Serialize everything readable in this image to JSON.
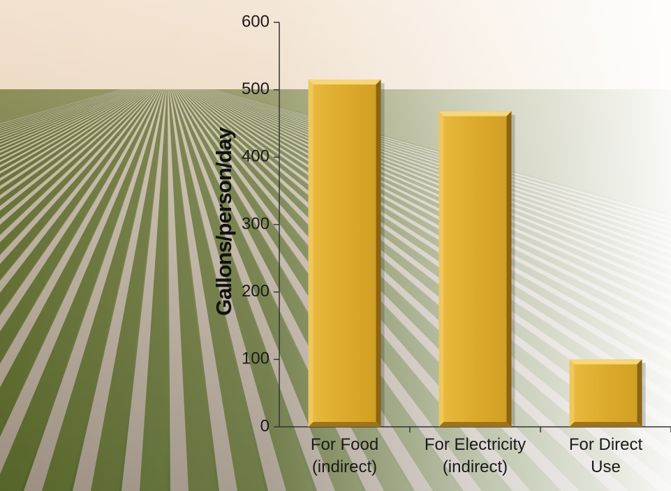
{
  "colors": {
    "bar_fill": "#E0AE2E",
    "bar_highlight": "#F6D77A",
    "bar_shadow": "#8A6412",
    "axis": "#333333",
    "sky": "#E8D3B6",
    "field_dark": "#5C6A2C",
    "water": "#B7A9A2"
  },
  "chart_data": {
    "type": "bar",
    "categories": [
      [
        "For Food",
        "(indirect)"
      ],
      [
        "For Electricity",
        "(indirect)"
      ],
      [
        "For Direct",
        "Use"
      ]
    ],
    "values": [
      515,
      468,
      100
    ],
    "ylabel": "Gallons/person/day",
    "ylim": [
      0,
      600
    ],
    "yticks": [
      0,
      100,
      200,
      300,
      400,
      500,
      600
    ],
    "grid": false,
    "background": "photo of irrigated crop field"
  }
}
